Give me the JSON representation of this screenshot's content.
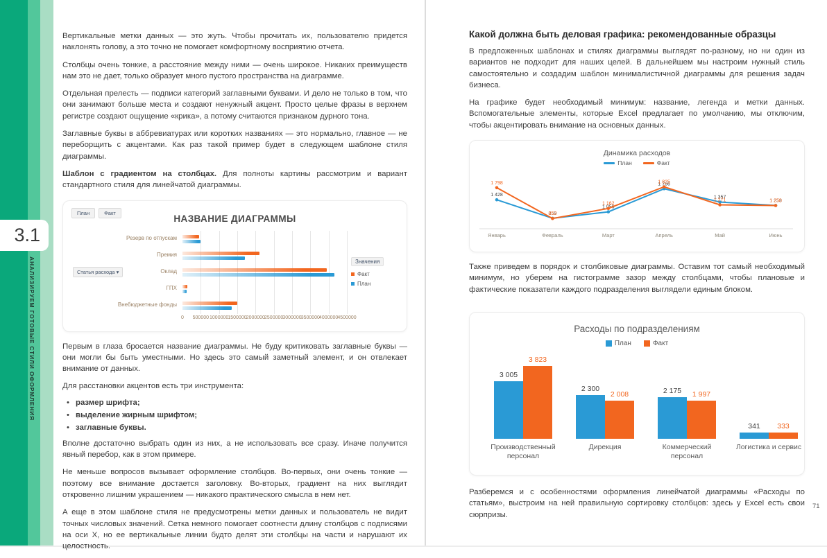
{
  "sidebar": {
    "section_number": "3.1",
    "section_title": "АНАЛИЗИРУЕМ ГОТОВЫЕ СТИЛИ ОФОРМЛЕНИЯ",
    "colors": {
      "stripe_dark": "#0aa87b",
      "stripe_mid": "#52c79b",
      "stripe_light": "#a9ddc4"
    }
  },
  "left_page": {
    "paragraphs": [
      "Вертикальные метки данных — это жуть. Чтобы прочитать их, пользователю придется наклонять голову, а это точно не помогает комфортному восприятию отчета.",
      "Столбцы очень тонкие, а расстояние между ними — очень широкое. Никаких преимуществ нам это не дает, только образует много пустого пространства на диаграмме.",
      "Отдельная прелесть — подписи категорий заглавными буквами. И дело не только в том, что они занимают больше места и создают ненужный акцент. Просто целые фразы в верхнем регистре создают ощущение «крика», а потому считаются признаком дурного тона.",
      "Заглавные буквы в аббревиатурах или коротких названиях — это нормально, главное — не переборщить с акцентами. Как раз такой пример будет в следующем шаблоне стиля диаграммы."
    ],
    "lead_bold": "Шаблон с градиентом на столбцах.",
    "lead_rest": " Для полноты картины рассмотрим и вариант стандартного стиля для линейчатой диаграммы.",
    "after_chart_paragraphs": [
      "Первым в глаза бросается название диаграммы. Не буду критиковать заглавные буквы — они могли бы быть уместными. Но здесь это самый заметный элемент, и он отвлекает внимание от данных.",
      "Для расстановки акцентов есть три инструмента:"
    ],
    "bullets": [
      "размер шрифта;",
      "выделение жирным шрифтом;",
      "заглавные буквы."
    ],
    "closing_paragraphs": [
      "Вполне достаточно выбрать один из них, а не использовать все сразу. Иначе получится явный перебор, как в этом примере.",
      "Не меньше вопросов вызывает оформление столбцов. Во-первых, они очень тонкие — поэтому все внимание достается заголовку. Во-вторых, градиент на них выглядит откровенно лишним украшением — никакого практического смысла в нем нет.",
      "А еще в этом шаблоне стиля не предусмотрены метки данных и пользователь не видит точных числовых значений. Сетка немного помогает соотнести длину столбцов с подписями на оси X, но ее вертикальные линии будто делят эти столбцы на части и нарушают их целостность."
    ]
  },
  "right_page": {
    "heading": "Какой должна быть деловая графика: рекомендованные образцы",
    "paragraphs_top": [
      "В предложенных шаблонах и стилях диаграммы выглядят по-разному, но ни один из вариантов не подходит для наших целей. В дальнейшем мы настроим нужный стиль самостоятельно и создадим шаблон минималистичной диаграммы для решения задач бизнеса.",
      "На графике будет необходимый минимум: название, легенда и метки данных. Вспомогательные элементы, которые Excel предлагает по умолчанию, мы отключим, чтобы акцентировать внимание на основных данных."
    ],
    "paragraph_middle": "Также приведем в порядок и столбиковые диаграммы. Оставим тот самый необходимый минимум, но уберем на гистограмме зазор между столбцами, чтобы плановые и фактические показатели каждого подразделения выглядели единым блоком.",
    "paragraph_bottom": "Разберемся и с особенностями оформления линейчатой диаграммы «Расходы по статьям», выстроим на ней правильную сортировку столбцов: здесь у Excel есть свои сюрпризы.",
    "page_number": "71"
  },
  "chart_data": [
    {
      "type": "bar",
      "orientation": "horizontal",
      "title": "НАЗВАНИЕ ДИАГРАММЫ",
      "slicer_buttons": [
        "План",
        "Факт"
      ],
      "field_button": "Статья расхода",
      "legend_title": "Значения",
      "legend_position": "right",
      "grid": true,
      "categories": [
        "Резерв по отпускам",
        "Премия",
        "Оклад",
        "ГПХ",
        "Внебюджетные фонды"
      ],
      "series": [
        {
          "name": "Факт",
          "color": "#f2661f",
          "values": [
            450000,
            2100000,
            3950000,
            130000,
            1500000
          ]
        },
        {
          "name": "План",
          "color": "#2a9ad5",
          "values": [
            500000,
            1700000,
            4150000,
            110000,
            1350000
          ]
        }
      ],
      "xlim": [
        0,
        4500000
      ],
      "x_ticks": [
        0,
        500000,
        1000000,
        1500000,
        2000000,
        2500000,
        3000000,
        3500000,
        4000000,
        4500000
      ]
    },
    {
      "type": "line",
      "title": "Динамика расходов",
      "legend_position": "top",
      "grid": false,
      "data_labels": true,
      "categories": [
        "Январь",
        "Февраль",
        "Март",
        "Апрель",
        "Май",
        "Июнь"
      ],
      "series": [
        {
          "name": "План",
          "color": "#2a9ad5",
          "label_color": "#3f3f3f",
          "values": [
            1428,
            859,
            1056,
            1766,
            1357,
            1253
          ]
        },
        {
          "name": "Факт",
          "color": "#f2661f",
          "label_color": "#f2661f",
          "values": [
            1798,
            853,
            1162,
            1825,
            1271,
            1250
          ]
        }
      ],
      "ylim": [
        750,
        1900
      ]
    },
    {
      "type": "bar",
      "orientation": "vertical",
      "title": "Расходы по подразделениям",
      "legend_position": "top",
      "grid": false,
      "data_labels": true,
      "categories": [
        "Производственный персонал",
        "Дирекция",
        "Коммерческий персонал",
        "Логистика и сервис"
      ],
      "series": [
        {
          "name": "План",
          "color": "#2a9ad5",
          "label_color": "#3f3f3f",
          "values": [
            3005,
            2300,
            2175,
            341
          ]
        },
        {
          "name": "Факт",
          "color": "#f2661f",
          "label_color": "#f2661f",
          "values": [
            3823,
            2008,
            1997,
            333
          ]
        }
      ],
      "ylim": [
        0,
        4000
      ]
    }
  ]
}
